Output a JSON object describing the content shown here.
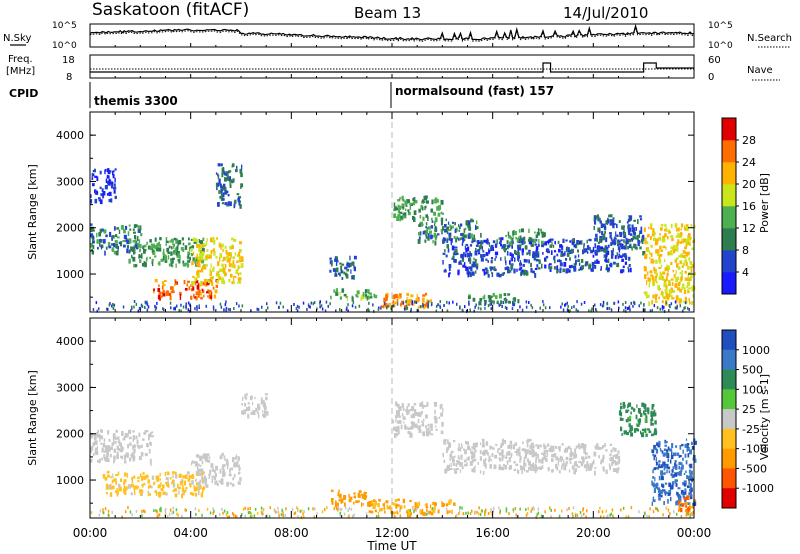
{
  "header": {
    "radar": "Saskatoon (fitACF)",
    "beam": "Beam 13",
    "date": "14/Jul/2010"
  },
  "nsky_panel": {
    "left_label": "N.Sky",
    "left_ticks": [
      "10^5",
      "10^0"
    ],
    "right_ticks": [
      "10^5",
      "10^0"
    ],
    "right_label": "N.Search"
  },
  "freq_panel": {
    "left_label_1": "Freq.",
    "left_label_2": "[MHz]",
    "left_ticks": [
      "18",
      "8"
    ],
    "right_ticks": [
      "60",
      "0"
    ],
    "right_label": "Nave"
  },
  "cpid": {
    "label": "CPID",
    "programs": [
      {
        "name": "themis 3300",
        "start_hour": 0.0
      },
      {
        "name": "normalsound (fast) 157",
        "start_hour": 12.0
      }
    ]
  },
  "chart_data": [
    {
      "type": "heatmap",
      "name": "power",
      "ylabel": "Slant Range [km]",
      "xlabel": "",
      "x_ticks": [
        "00:00",
        "04:00",
        "08:00",
        "12:00",
        "16:00",
        "20:00",
        "00:00"
      ],
      "xlim_hours": [
        0,
        24
      ],
      "y_ticks": [
        1000,
        2000,
        3000,
        4000
      ],
      "ylim": [
        180,
        4500
      ],
      "colorbar": {
        "label": "Power [dB]",
        "ticks": [
          "4",
          "8",
          "12",
          "16",
          "20",
          "24",
          "28"
        ],
        "colors": [
          "#1a1aff",
          "#2244cc",
          "#2e7d4f",
          "#4caf50",
          "#c8e619",
          "#ffb300",
          "#ff6d00",
          "#e00000"
        ]
      },
      "regions": [
        {
          "t0": 0.0,
          "t1": 2.0,
          "r0": 1500,
          "r1": 2100,
          "level": 12
        },
        {
          "t0": 0.0,
          "t1": 1.0,
          "r0": 2600,
          "r1": 3300,
          "level": 6
        },
        {
          "t0": 1.5,
          "t1": 4.5,
          "r0": 1200,
          "r1": 1800,
          "level": 14
        },
        {
          "t0": 2.5,
          "t1": 5.0,
          "r0": 500,
          "r1": 900,
          "level": 28
        },
        {
          "t0": 4.0,
          "t1": 6.0,
          "r0": 800,
          "r1": 1800,
          "level": 22
        },
        {
          "t0": 5.0,
          "t1": 6.0,
          "r0": 2500,
          "r1": 3400,
          "level": 10
        },
        {
          "t0": 9.5,
          "t1": 10.5,
          "r0": 900,
          "r1": 1400,
          "level": 10
        },
        {
          "t0": 9.5,
          "t1": 11.5,
          "r0": 500,
          "r1": 700,
          "level": 16
        },
        {
          "t0": 11.5,
          "t1": 13.5,
          "r0": 300,
          "r1": 600,
          "level": 26
        },
        {
          "t0": 12.0,
          "t1": 14.0,
          "r0": 2200,
          "r1": 2700,
          "level": 14
        },
        {
          "t0": 13.0,
          "t1": 15.5,
          "r0": 1700,
          "r1": 2200,
          "level": 12
        },
        {
          "t0": 14.0,
          "t1": 18.0,
          "r0": 1000,
          "r1": 1800,
          "level": 8
        },
        {
          "t0": 15.0,
          "t1": 17.0,
          "r0": 400,
          "r1": 600,
          "level": 14
        },
        {
          "t0": 16.5,
          "t1": 18.0,
          "r0": 1700,
          "r1": 2000,
          "level": 14
        },
        {
          "t0": 18.0,
          "t1": 21.5,
          "r0": 1100,
          "r1": 1800,
          "level": 8
        },
        {
          "t0": 20.0,
          "t1": 22.0,
          "r0": 1500,
          "r1": 2300,
          "level": 10
        },
        {
          "t0": 22.0,
          "t1": 24.0,
          "r0": 400,
          "r1": 2100,
          "level": 22
        }
      ]
    },
    {
      "type": "heatmap",
      "name": "velocity",
      "ylabel": "Slant Range [km]",
      "xlabel": "Time UT",
      "x_ticks": [
        "00:00",
        "04:00",
        "08:00",
        "12:00",
        "16:00",
        "20:00",
        "00:00"
      ],
      "xlim_hours": [
        0,
        24
      ],
      "y_ticks": [
        1000,
        2000,
        3000,
        4000
      ],
      "ylim": [
        180,
        4500
      ],
      "colorbar": {
        "label": "Velocity [m s-1]",
        "ticks": [
          "1000",
          "500",
          "100",
          "25",
          "-25",
          "-100",
          "-500",
          "-1000"
        ],
        "colors": [
          "#1f4fbf",
          "#3a78c8",
          "#2e8b57",
          "#55c83a",
          "#c8c8c8",
          "#ffc020",
          "#ff9a00",
          "#ff5500",
          "#e00000"
        ]
      },
      "regions": [
        {
          "t0": 0.0,
          "t1": 2.5,
          "r0": 1400,
          "r1": 2100,
          "level": 0
        },
        {
          "t0": 0.5,
          "t1": 4.5,
          "r0": 700,
          "r1": 1200,
          "level": -40
        },
        {
          "t0": 4.0,
          "t1": 6.0,
          "r0": 900,
          "r1": 1600,
          "level": 0
        },
        {
          "t0": 6.0,
          "t1": 7.0,
          "r0": 2400,
          "r1": 2900,
          "level": 0
        },
        {
          "t0": 9.5,
          "t1": 11.0,
          "r0": 500,
          "r1": 800,
          "level": -90
        },
        {
          "t0": 11.0,
          "t1": 14.5,
          "r0": 300,
          "r1": 600,
          "level": -60
        },
        {
          "t0": 12.0,
          "t1": 14.0,
          "r0": 2000,
          "r1": 2700,
          "level": 0
        },
        {
          "t0": 14.0,
          "t1": 18.0,
          "r0": 1200,
          "r1": 1900,
          "level": 0
        },
        {
          "t0": 18.0,
          "t1": 21.0,
          "r0": 1200,
          "r1": 1800,
          "level": 0
        },
        {
          "t0": 21.0,
          "t1": 22.5,
          "r0": 2000,
          "r1": 2700,
          "level": 80
        },
        {
          "t0": 22.3,
          "t1": 24.0,
          "r0": 500,
          "r1": 1900,
          "level": 700
        },
        {
          "t0": 23.3,
          "t1": 24.0,
          "r0": 300,
          "r1": 700,
          "level": -300
        }
      ]
    }
  ]
}
